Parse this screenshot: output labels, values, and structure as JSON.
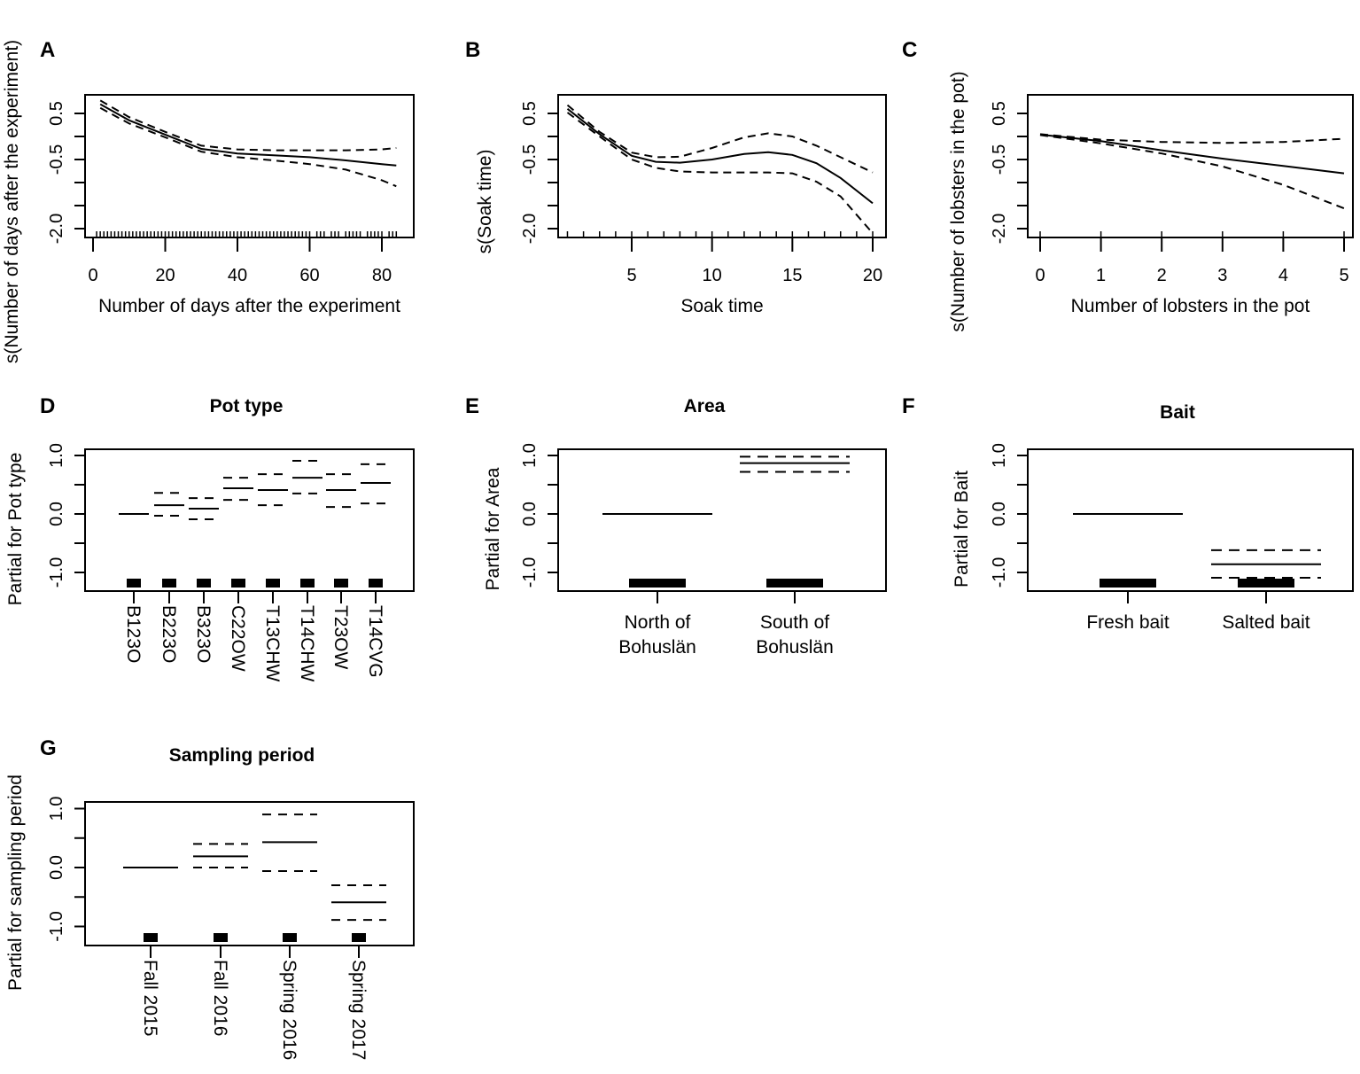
{
  "chart_data": [
    {
      "panel": "A",
      "type": "line",
      "title": "",
      "xlabel": "Number of days after the experiment",
      "ylabel": "s(Number of days after the experiment)",
      "xticks": [
        0,
        20,
        40,
        60,
        80
      ],
      "xlim": [
        0,
        87
      ],
      "yticks": [
        0.5,
        0,
        -0.5,
        -1.0,
        -1.5,
        -2.0
      ],
      "ytick_labels": [
        "0.5",
        "",
        "-0.5",
        "",
        "",
        "-2.0"
      ],
      "ylim": [
        -2.15,
        0.9
      ],
      "x": [
        2,
        10,
        20,
        30,
        40,
        50,
        60,
        70,
        80,
        84
      ],
      "series": [
        {
          "name": "fit",
          "style": "solid",
          "values": [
            0.7,
            0.35,
            0.04,
            -0.27,
            -0.37,
            -0.41,
            -0.45,
            -0.52,
            -0.6,
            -0.63
          ]
        },
        {
          "name": "upper",
          "style": "dashed",
          "values": [
            0.78,
            0.42,
            0.1,
            -0.2,
            -0.28,
            -0.3,
            -0.3,
            -0.3,
            -0.28,
            -0.25
          ]
        },
        {
          "name": "lower",
          "style": "dashed",
          "values": [
            0.62,
            0.28,
            -0.02,
            -0.33,
            -0.45,
            -0.52,
            -0.6,
            -0.72,
            -0.95,
            -1.08
          ]
        }
      ],
      "rug": [
        1,
        2,
        3,
        4,
        5,
        6,
        7,
        8,
        9,
        10,
        11,
        12,
        13,
        14,
        15,
        16,
        17,
        18,
        19,
        20,
        21,
        22,
        23,
        24,
        25,
        26,
        27,
        28,
        29,
        30,
        31,
        32,
        33,
        34,
        35,
        36,
        37,
        38,
        39,
        40,
        41,
        42,
        43,
        44,
        45,
        46,
        47,
        48,
        49,
        50,
        51,
        52,
        53,
        54,
        55,
        56,
        57,
        58,
        59,
        60,
        62,
        63,
        64,
        66,
        67,
        68,
        70,
        71,
        72,
        73,
        74,
        76,
        77,
        78,
        79,
        80,
        82,
        83,
        84
      ]
    },
    {
      "panel": "B",
      "type": "line",
      "title": "",
      "xlabel": "Soak time",
      "ylabel": "s(Soak time)",
      "xticks": [
        5,
        10,
        15,
        20
      ],
      "xlim": [
        0.5,
        20.8
      ],
      "yticks": [
        0.5,
        0,
        -0.5,
        -1.0,
        -1.5,
        -2.0
      ],
      "ytick_labels": [
        "0.5",
        "",
        "-0.5",
        "",
        "",
        "-2.0"
      ],
      "ylim": [
        -2.15,
        0.9
      ],
      "x": [
        1,
        3,
        5,
        6.5,
        8,
        10,
        12,
        13.5,
        15,
        16.5,
        18,
        20
      ],
      "series": [
        {
          "name": "fit",
          "style": "solid",
          "values": [
            0.6,
            0.05,
            -0.42,
            -0.55,
            -0.57,
            -0.5,
            -0.38,
            -0.34,
            -0.4,
            -0.58,
            -0.9,
            -1.45
          ]
        },
        {
          "name": "upper",
          "style": "dashed",
          "values": [
            0.68,
            0.1,
            -0.35,
            -0.45,
            -0.44,
            -0.25,
            -0.02,
            0.07,
            0.0,
            -0.2,
            -0.45,
            -0.78
          ]
        },
        {
          "name": "lower",
          "style": "dashed",
          "values": [
            0.52,
            0.0,
            -0.5,
            -0.68,
            -0.76,
            -0.78,
            -0.78,
            -0.78,
            -0.8,
            -0.98,
            -1.3,
            -2.1
          ]
        }
      ],
      "rug": [
        1,
        2,
        3,
        4,
        5,
        6,
        7,
        8,
        9,
        10,
        11,
        12,
        13,
        14,
        15,
        16,
        17,
        18,
        19,
        20
      ]
    },
    {
      "panel": "C",
      "type": "line",
      "title": "",
      "xlabel": "Number of lobsters in the pot",
      "ylabel": "s(Number of lobsters in the pot)",
      "xticks": [
        0,
        1,
        2,
        3,
        4,
        5
      ],
      "xlim": [
        -0.2,
        5.15
      ],
      "yticks": [
        0.5,
        0,
        -0.5,
        -1.0,
        -1.5,
        -2.0
      ],
      "ytick_labels": [
        "0.5",
        "",
        "-0.5",
        "",
        "",
        "-2.0"
      ],
      "ylim": [
        -2.15,
        0.9
      ],
      "x": [
        0,
        1,
        2,
        3,
        4,
        5
      ],
      "series": [
        {
          "name": "fit",
          "style": "solid",
          "values": [
            0.04,
            -0.1,
            -0.3,
            -0.48,
            -0.64,
            -0.8
          ]
        },
        {
          "name": "upper",
          "style": "dashed",
          "values": [
            0.05,
            -0.07,
            -0.12,
            -0.14,
            -0.12,
            -0.05
          ]
        },
        {
          "name": "lower",
          "style": "dashed",
          "values": [
            0.03,
            -0.15,
            -0.37,
            -0.65,
            -1.05,
            -1.56
          ]
        }
      ],
      "rug": [
        0,
        1,
        2,
        3,
        4,
        5
      ]
    },
    {
      "panel": "D",
      "type": "bar",
      "title": "Pot type",
      "xlabel": "",
      "ylabel": "Partial for Pot type",
      "yticks": [
        1.0,
        0.5,
        0.0,
        -0.5,
        -1.0
      ],
      "ytick_labels": [
        "1.0",
        "",
        "0.0",
        "",
        "-1.0"
      ],
      "categories": [
        "B123O",
        "B223O",
        "B323O",
        "C22OW",
        "T13CHW",
        "T14CHW",
        "T23OW",
        "T14CVG"
      ],
      "values": [
        0,
        0.15,
        0.09,
        0.44,
        0.41,
        0.62,
        0.41,
        0.53
      ],
      "upper": [
        null,
        0.36,
        0.27,
        0.62,
        0.68,
        0.91,
        0.68,
        0.85
      ],
      "lower": [
        null,
        -0.03,
        -0.09,
        0.24,
        0.15,
        0.35,
        0.12,
        0.18
      ]
    },
    {
      "panel": "E",
      "type": "bar",
      "title": "Area",
      "xlabel": "",
      "ylabel": "Partial for Area",
      "yticks": [
        1.0,
        0.5,
        0.0,
        -0.5,
        -1.0
      ],
      "ytick_labels": [
        "1.0",
        "",
        "0.0",
        "",
        "-1.0"
      ],
      "categories": [
        "North of Bohuslän",
        "South of Bohuslän"
      ],
      "values": [
        0,
        0.87
      ],
      "upper": [
        null,
        0.98
      ],
      "lower": [
        null,
        0.72
      ]
    },
    {
      "panel": "F",
      "type": "bar",
      "title": "Bait",
      "xlabel": "",
      "ylabel": "Partial for Bait",
      "yticks": [
        1.0,
        0.5,
        0.0,
        -0.5,
        -1.0
      ],
      "ytick_labels": [
        "1.0",
        "",
        "0.0",
        "",
        "-1.0"
      ],
      "categories": [
        "Fresh bait",
        "Salted bait"
      ],
      "values": [
        0,
        -0.86
      ],
      "upper": [
        null,
        -0.62
      ],
      "lower": [
        null,
        -1.09
      ]
    },
    {
      "panel": "G",
      "type": "bar",
      "title": "Sampling period",
      "xlabel": "",
      "ylabel": "Partial for sampling period",
      "yticks": [
        1.0,
        0.5,
        0.0,
        -0.5,
        -1.0
      ],
      "ytick_labels": [
        "1.0",
        "",
        "0.0",
        "",
        "-1.0"
      ],
      "categories": [
        "Fall 2015",
        "Fall 2016",
        "Spring 2016",
        "Spring 2017"
      ],
      "values": [
        0,
        0.19,
        0.43,
        -0.59
      ],
      "upper": [
        null,
        0.4,
        0.9,
        -0.3
      ],
      "lower": [
        null,
        0.0,
        -0.06,
        -0.89
      ]
    }
  ]
}
